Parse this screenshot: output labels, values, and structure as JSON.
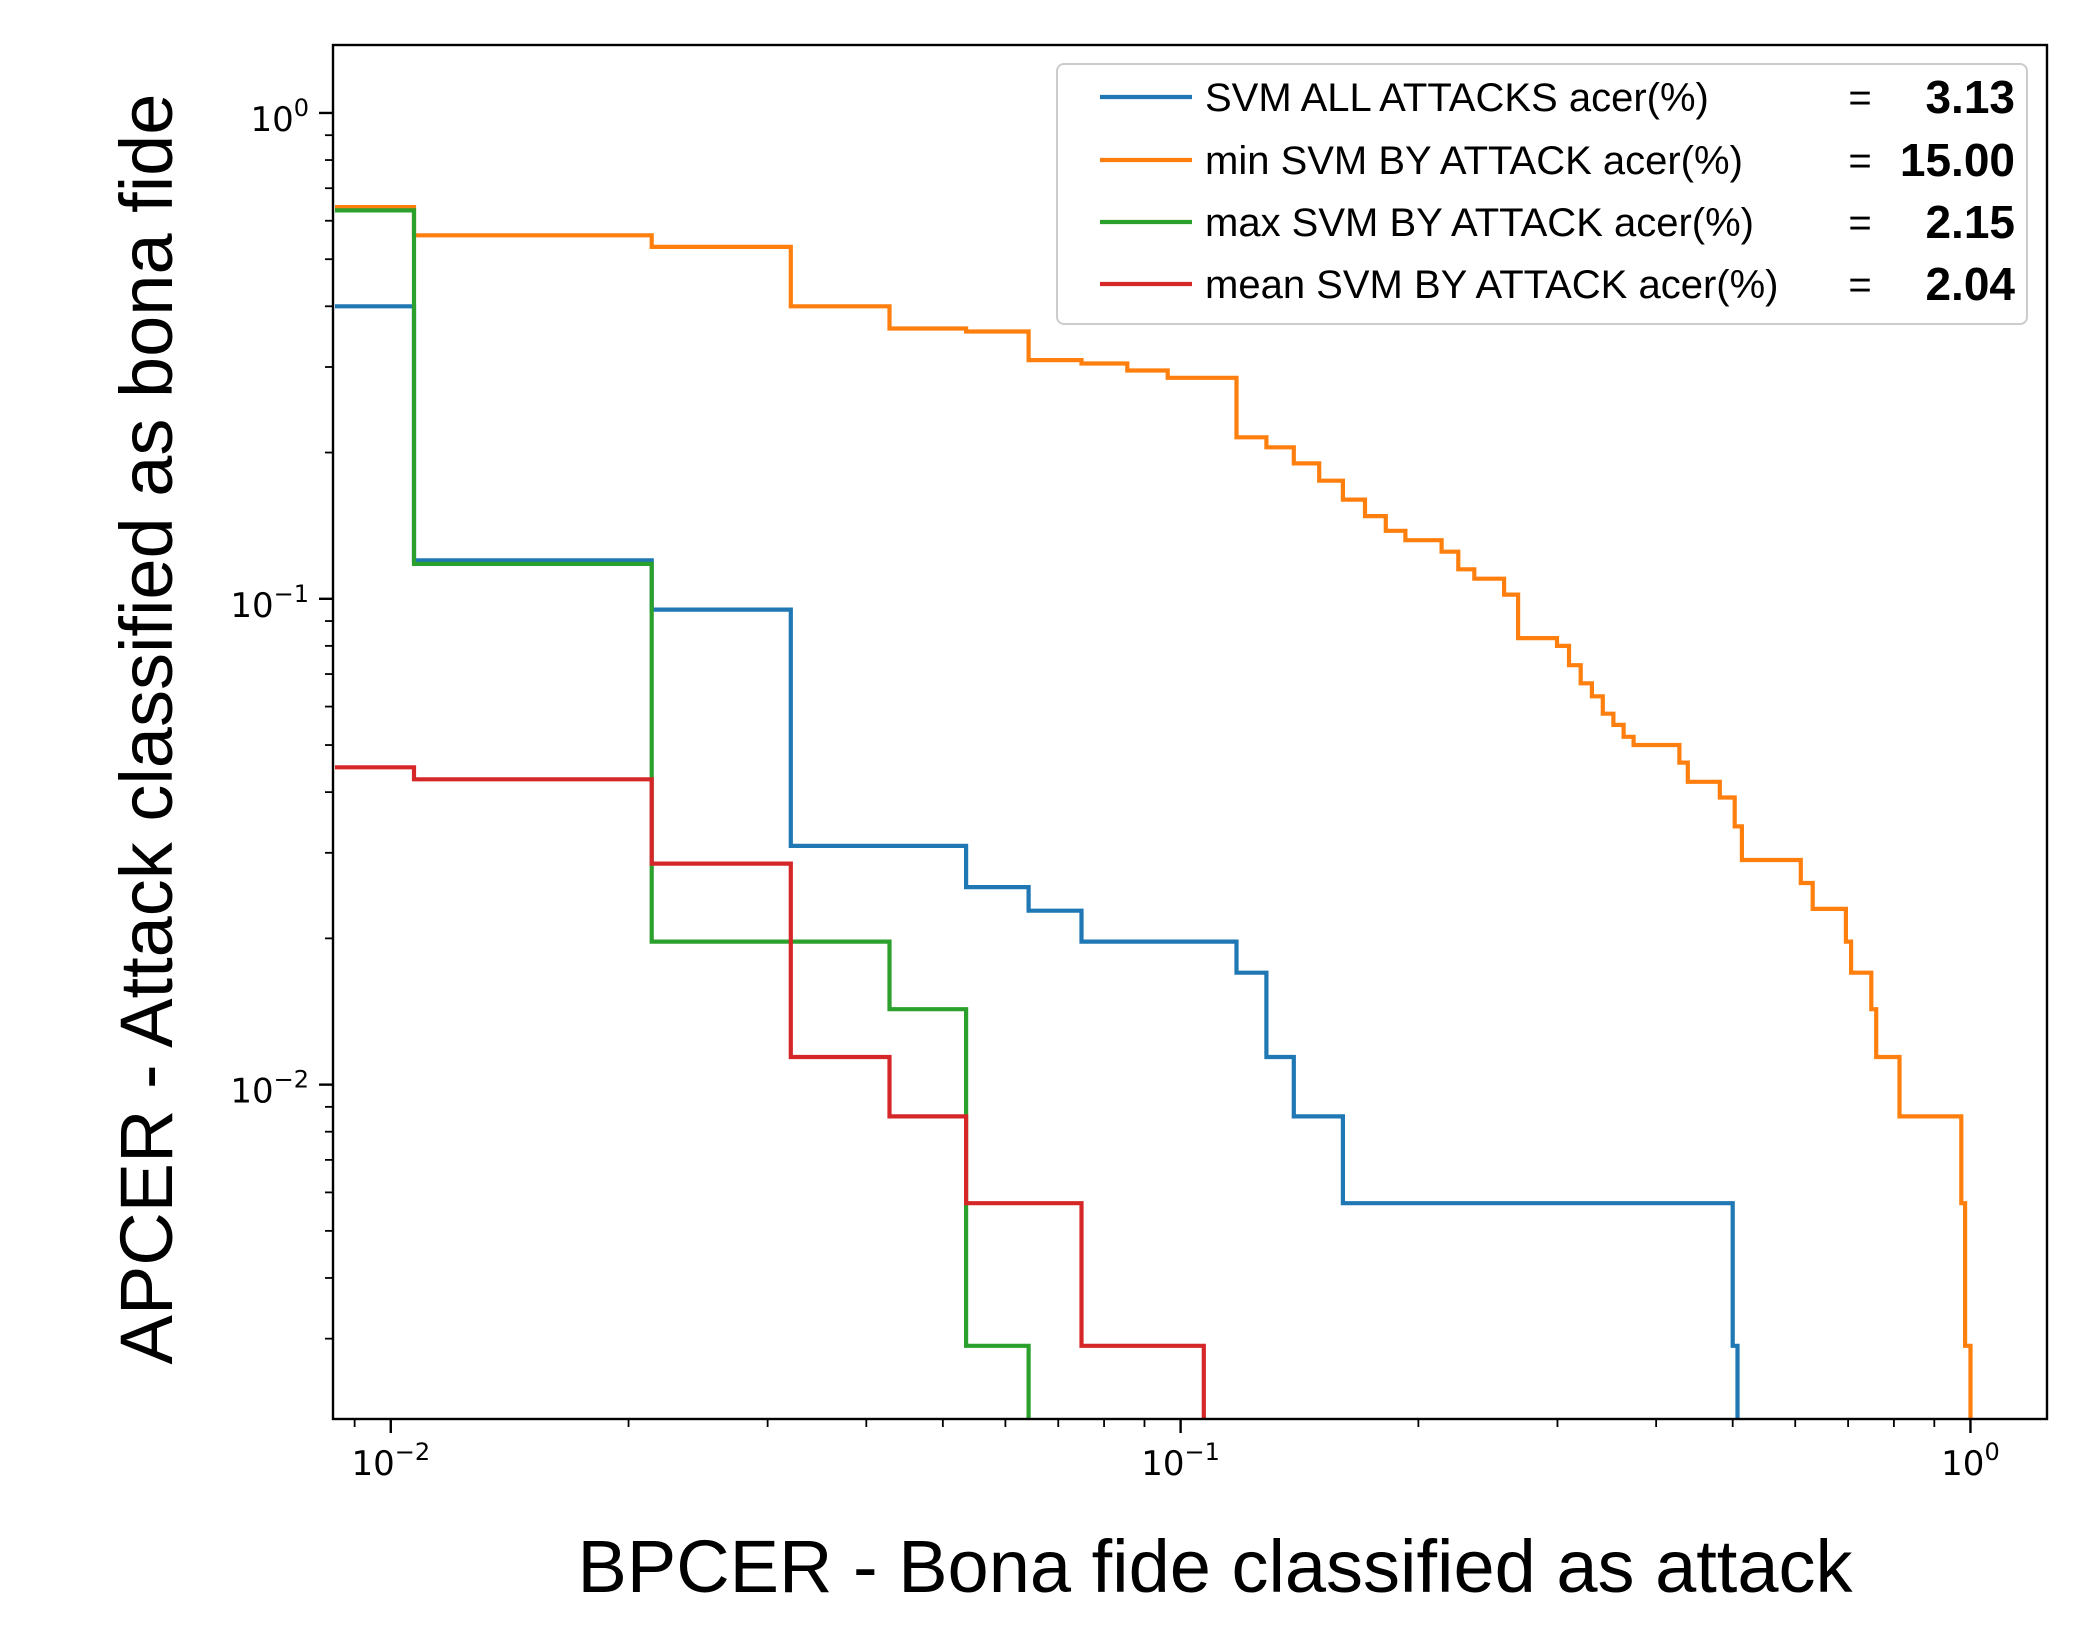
{
  "chart_data": {
    "type": "line",
    "step": true,
    "title": "",
    "xlabel": "BPCER - Bona fide classified as attack",
    "ylabel": "APCER - Attack classified as bona fide",
    "xscale": "log",
    "yscale": "log",
    "xlim": [
      0.00845,
      1.25
    ],
    "ylim": [
      0.00205,
      1.38
    ],
    "grid": false,
    "legend_position": "top-right",
    "x_ticks": [
      {
        "value": 0.01,
        "base": "10",
        "exp": "−2"
      },
      {
        "value": 0.1,
        "base": "10",
        "exp": "−1"
      },
      {
        "value": 1,
        "base": "10",
        "exp": "0"
      }
    ],
    "y_ticks": [
      {
        "value": 1,
        "base": "10",
        "exp": "0"
      },
      {
        "value": 0.1,
        "base": "10",
        "exp": "−1"
      },
      {
        "value": 0.01,
        "base": "10",
        "exp": "−2"
      }
    ],
    "series": [
      {
        "name": "SVM ALL ATTACKS acer(%)",
        "eq": "=",
        "value": "3.13",
        "color": "#1f77b4",
        "points": [
          [
            0.0085,
            0.4
          ],
          [
            0.0107,
            0.4
          ],
          [
            0.0107,
            0.12
          ],
          [
            0.0214,
            0.12
          ],
          [
            0.0214,
            0.095
          ],
          [
            0.0321,
            0.095
          ],
          [
            0.0321,
            0.031
          ],
          [
            0.0535,
            0.031
          ],
          [
            0.0535,
            0.0255
          ],
          [
            0.0642,
            0.0255
          ],
          [
            0.0642,
            0.0228
          ],
          [
            0.0749,
            0.0228
          ],
          [
            0.0749,
            0.0197
          ],
          [
            0.1177,
            0.0197
          ],
          [
            0.1177,
            0.017
          ],
          [
            0.1284,
            0.017
          ],
          [
            0.1284,
            0.0114
          ],
          [
            0.1391,
            0.0114
          ],
          [
            0.1391,
            0.0086
          ],
          [
            0.1605,
            0.0086
          ],
          [
            0.1605,
            0.0057
          ],
          [
            0.5,
            0.0057
          ],
          [
            0.5,
            0.0029
          ],
          [
            0.507,
            0.0029
          ],
          [
            0.507,
            0.00205
          ]
        ]
      },
      {
        "name": "min SVM BY ATTACK acer(%)",
        "eq": "=",
        "value": "15.00",
        "color": "#ff7f0e",
        "points": [
          [
            0.0085,
            0.64
          ],
          [
            0.0107,
            0.64
          ],
          [
            0.0107,
            0.56
          ],
          [
            0.0214,
            0.56
          ],
          [
            0.0214,
            0.53
          ],
          [
            0.0321,
            0.53
          ],
          [
            0.0321,
            0.4
          ],
          [
            0.0428,
            0.4
          ],
          [
            0.0428,
            0.36
          ],
          [
            0.0535,
            0.36
          ],
          [
            0.0535,
            0.355
          ],
          [
            0.0642,
            0.355
          ],
          [
            0.0642,
            0.31
          ],
          [
            0.0749,
            0.31
          ],
          [
            0.0749,
            0.305
          ],
          [
            0.0856,
            0.305
          ],
          [
            0.0856,
            0.295
          ],
          [
            0.0963,
            0.295
          ],
          [
            0.0963,
            0.285
          ],
          [
            0.1177,
            0.285
          ],
          [
            0.1177,
            0.215
          ],
          [
            0.1284,
            0.215
          ],
          [
            0.1284,
            0.205
          ],
          [
            0.1391,
            0.205
          ],
          [
            0.1391,
            0.19
          ],
          [
            0.1498,
            0.19
          ],
          [
            0.1498,
            0.175
          ],
          [
            0.1605,
            0.175
          ],
          [
            0.1605,
            0.16
          ],
          [
            0.1712,
            0.16
          ],
          [
            0.1712,
            0.148
          ],
          [
            0.1819,
            0.148
          ],
          [
            0.1819,
            0.138
          ],
          [
            0.1926,
            0.138
          ],
          [
            0.1926,
            0.132
          ],
          [
            0.214,
            0.132
          ],
          [
            0.214,
            0.125
          ],
          [
            0.2247,
            0.125
          ],
          [
            0.2247,
            0.115
          ],
          [
            0.2354,
            0.115
          ],
          [
            0.2354,
            0.11
          ],
          [
            0.2568,
            0.11
          ],
          [
            0.2568,
            0.102
          ],
          [
            0.2675,
            0.102
          ],
          [
            0.2675,
            0.083
          ],
          [
            0.2996,
            0.083
          ],
          [
            0.2996,
            0.08
          ],
          [
            0.3103,
            0.08
          ],
          [
            0.3103,
            0.073
          ],
          [
            0.321,
            0.073
          ],
          [
            0.321,
            0.067
          ],
          [
            0.3317,
            0.067
          ],
          [
            0.3317,
            0.063
          ],
          [
            0.3424,
            0.063
          ],
          [
            0.3424,
            0.058
          ],
          [
            0.3531,
            0.058
          ],
          [
            0.3531,
            0.055
          ],
          [
            0.3638,
            0.055
          ],
          [
            0.3638,
            0.052
          ],
          [
            0.3745,
            0.052
          ],
          [
            0.3745,
            0.05
          ],
          [
            0.428,
            0.05
          ],
          [
            0.428,
            0.046
          ],
          [
            0.4387,
            0.046
          ],
          [
            0.4387,
            0.042
          ],
          [
            0.4815,
            0.042
          ],
          [
            0.4815,
            0.039
          ],
          [
            0.5029,
            0.039
          ],
          [
            0.5029,
            0.034
          ],
          [
            0.5136,
            0.034
          ],
          [
            0.5136,
            0.029
          ],
          [
            0.6099,
            0.029
          ],
          [
            0.6099,
            0.026
          ],
          [
            0.6313,
            0.026
          ],
          [
            0.6313,
            0.023
          ],
          [
            0.6955,
            0.023
          ],
          [
            0.6955,
            0.0197
          ],
          [
            0.7062,
            0.0197
          ],
          [
            0.7062,
            0.017
          ],
          [
            0.749,
            0.017
          ],
          [
            0.749,
            0.0143
          ],
          [
            0.7597,
            0.0143
          ],
          [
            0.7597,
            0.0114
          ],
          [
            0.8132,
            0.0114
          ],
          [
            0.8132,
            0.0086
          ],
          [
            0.9737,
            0.0086
          ],
          [
            0.9737,
            0.0057
          ],
          [
            0.9844,
            0.0057
          ],
          [
            0.9844,
            0.0029
          ],
          [
            1.0,
            0.0029
          ],
          [
            1.0,
            0.00205
          ]
        ]
      },
      {
        "name": "max SVM BY ATTACK acer(%)",
        "eq": "=",
        "value": "2.15",
        "color": "#2ca02c",
        "points": [
          [
            0.0085,
            0.63
          ],
          [
            0.0107,
            0.63
          ],
          [
            0.0107,
            0.118
          ],
          [
            0.0214,
            0.118
          ],
          [
            0.0214,
            0.0197
          ],
          [
            0.0428,
            0.0197
          ],
          [
            0.0428,
            0.0143
          ],
          [
            0.0535,
            0.0143
          ],
          [
            0.0535,
            0.0029
          ],
          [
            0.0642,
            0.0029
          ],
          [
            0.0642,
            0.00205
          ]
        ]
      },
      {
        "name": "mean SVM BY ATTACK acer(%)",
        "eq": "=",
        "value": "2.04",
        "color": "#d62728",
        "points": [
          [
            0.0085,
            0.045
          ],
          [
            0.0107,
            0.045
          ],
          [
            0.0107,
            0.0425
          ],
          [
            0.0214,
            0.0425
          ],
          [
            0.0214,
            0.0285
          ],
          [
            0.0321,
            0.0285
          ],
          [
            0.0321,
            0.0114
          ],
          [
            0.0428,
            0.0114
          ],
          [
            0.0428,
            0.0086
          ],
          [
            0.0535,
            0.0086
          ],
          [
            0.0535,
            0.0057
          ],
          [
            0.0749,
            0.0057
          ],
          [
            0.0749,
            0.0029
          ],
          [
            0.107,
            0.0029
          ],
          [
            0.107,
            0.00205
          ]
        ]
      }
    ]
  }
}
